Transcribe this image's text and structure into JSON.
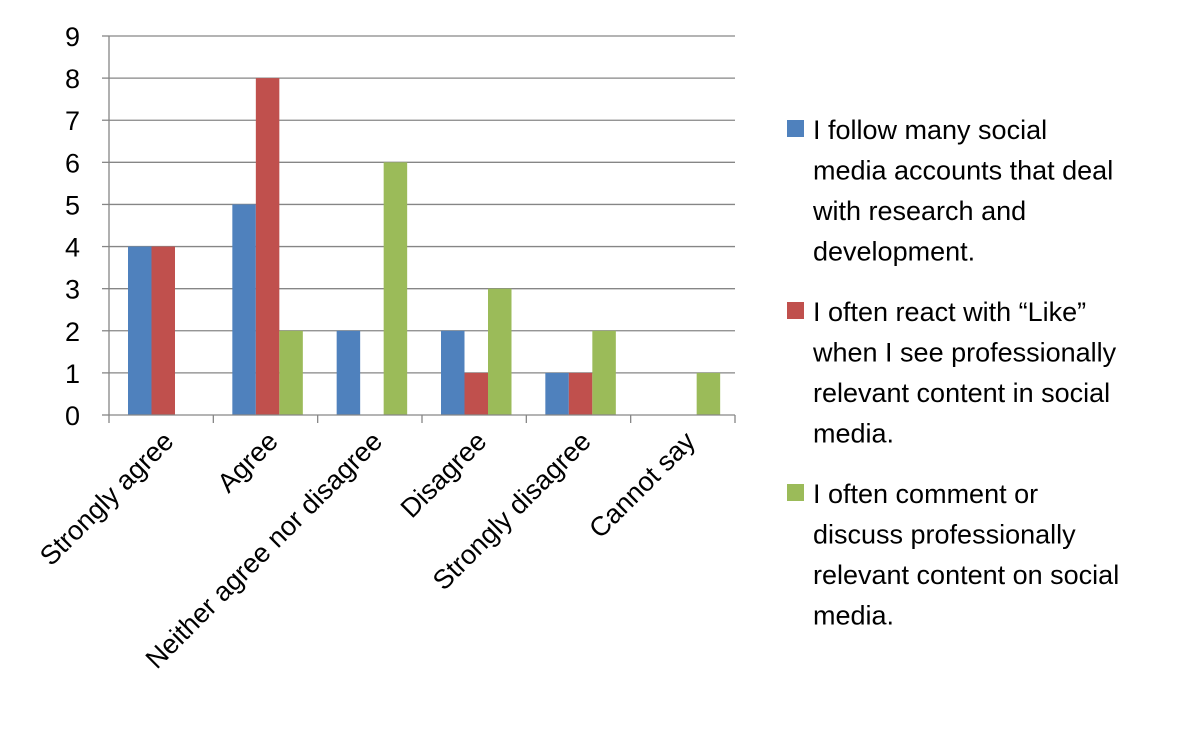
{
  "chart_data": {
    "type": "bar",
    "categories": [
      "Strongly agree",
      "Agree",
      "Neither agree nor disagree",
      "Disagree",
      "Strongly disagree",
      "Cannot say"
    ],
    "series": [
      {
        "name": "I follow many social media accounts that deal with research and development.",
        "legend_lines": [
          "I follow many social",
          "media accounts that deal",
          "with research and",
          "development."
        ],
        "color": "#4F81BD",
        "values": [
          4,
          5,
          2,
          2,
          1,
          0
        ]
      },
      {
        "name": "I often react with “Like” when I see professionally relevant content in social media.",
        "legend_lines": [
          "I often react with “Like”",
          "when I see professionally",
          "relevant content in social",
          "media."
        ],
        "color": "#C0504D",
        "values": [
          4,
          8,
          0,
          1,
          1,
          0
        ]
      },
      {
        "name": "I often comment or discuss professionally relevant content on social media.",
        "legend_lines": [
          "I often comment or",
          "discuss professionally",
          "relevant content on social",
          "media."
        ],
        "color": "#9BBB59",
        "values": [
          0,
          2,
          6,
          3,
          2,
          1
        ]
      }
    ],
    "ylim": [
      0,
      9
    ],
    "yticks": [
      "0",
      "1",
      "2",
      "3",
      "4",
      "5",
      "6",
      "7",
      "8",
      "9"
    ],
    "grid": true,
    "legend_position": "right",
    "title": "",
    "xlabel": "",
    "ylabel": ""
  }
}
